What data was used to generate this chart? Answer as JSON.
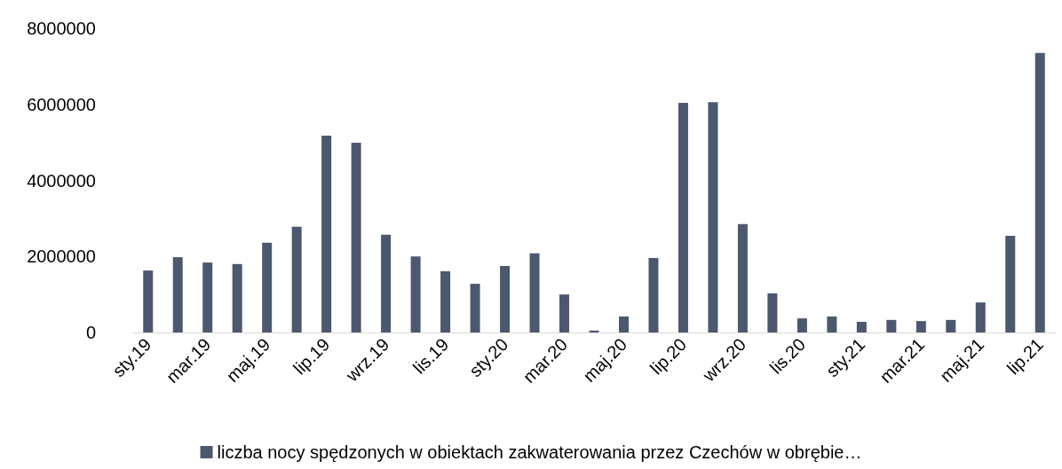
{
  "chart_data": {
    "type": "bar",
    "categories": [
      "sty.19",
      null,
      "mar.19",
      null,
      "maj.19",
      null,
      "lip.19",
      null,
      "wrz.19",
      null,
      "lis.19",
      null,
      "sty.20",
      null,
      "mar.20",
      null,
      "maj.20",
      null,
      "lip.20",
      null,
      "wrz.20",
      null,
      "lis.20",
      null,
      "sty.21",
      null,
      "mar.21",
      null,
      "maj.21",
      null,
      "lip.21"
    ],
    "series": [
      {
        "name": "liczba nocy spędzonych w obiektach zakwaterowania przez Czechów w obrębie…",
        "color": "#4b5870",
        "values": [
          1630000,
          1980000,
          1840000,
          1800000,
          2360000,
          2780000,
          5180000,
          4990000,
          2570000,
          2000000,
          1610000,
          1280000,
          1750000,
          2080000,
          1000000,
          50000,
          420000,
          1960000,
          6040000,
          6060000,
          2850000,
          1030000,
          370000,
          420000,
          280000,
          330000,
          300000,
          330000,
          790000,
          2540000,
          7350000
        ]
      }
    ],
    "ylim": [
      0,
      8000000
    ],
    "yticks": [
      0,
      2000000,
      4000000,
      6000000,
      8000000
    ],
    "grid": false,
    "legend": "bottom"
  }
}
